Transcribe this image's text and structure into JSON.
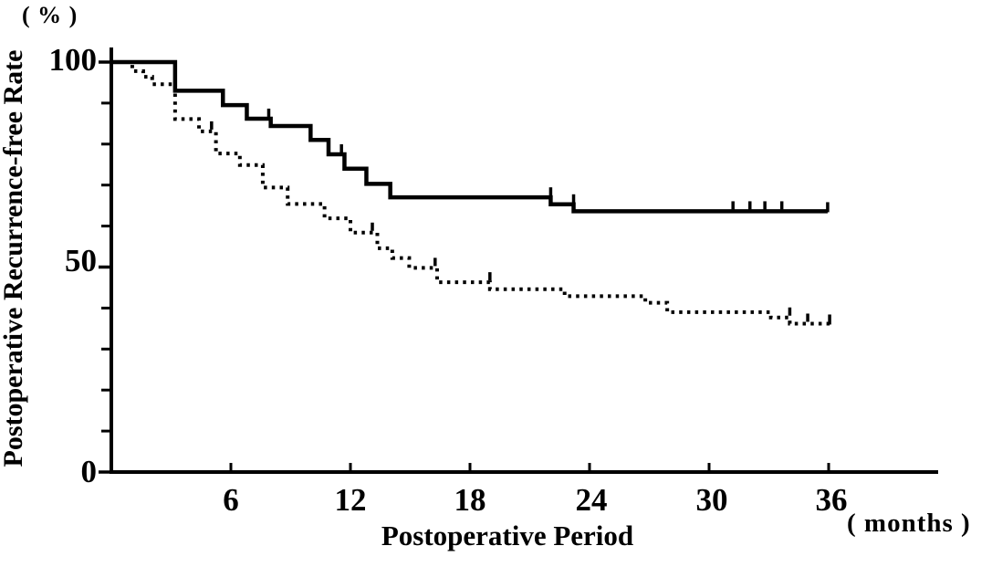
{
  "chart_data": {
    "type": "line",
    "subtype": "kaplan-meier-step",
    "title": "",
    "xlabel": "Postoperative Period",
    "ylabel": "Postoperative Recurrence-free Rate",
    "x_unit": "( months )",
    "y_unit": "( % )",
    "xlim": [
      0,
      41.5
    ],
    "ylim": [
      0,
      100
    ],
    "x_ticks": [
      6,
      12,
      18,
      24,
      30,
      36
    ],
    "y_ticks_labeled": [
      0,
      50,
      100
    ],
    "y_ticks_minor": [
      10,
      20,
      30,
      40,
      60,
      70,
      80,
      90
    ],
    "grid": false,
    "legend": "none",
    "colors": {
      "foreground": "#000000",
      "background": "#ffffff"
    },
    "series": [
      {
        "name": "upper-curve-solid",
        "line_style": "solid",
        "start": {
          "t": 0,
          "pct": 100
        },
        "steps": [
          {
            "t": 3.2,
            "pct": 93
          },
          {
            "t": 5.6,
            "pct": 89.5
          },
          {
            "t": 6.8,
            "pct": 86.2
          },
          {
            "t": 8.0,
            "pct": 84.4
          },
          {
            "t": 10.0,
            "pct": 81
          },
          {
            "t": 10.9,
            "pct": 77.5
          },
          {
            "t": 11.7,
            "pct": 74
          },
          {
            "t": 12.8,
            "pct": 70.3
          },
          {
            "t": 14.0,
            "pct": 67
          },
          {
            "t": 22.05,
            "pct": 65.3
          },
          {
            "t": 23.2,
            "pct": 63.6
          }
        ],
        "end_t": 35.95,
        "final_pct": 63.6,
        "censor_marks": [
          {
            "t": 7.9,
            "pct": 86.2
          },
          {
            "t": 11.55,
            "pct": 77.5
          },
          {
            "t": 22.05,
            "pct": 67
          },
          {
            "t": 23.2,
            "pct": 65.3
          },
          {
            "t": 31.2,
            "pct": 63.6
          },
          {
            "t": 32.05,
            "pct": 63.6
          },
          {
            "t": 32.8,
            "pct": 63.6
          },
          {
            "t": 33.65,
            "pct": 63.6
          }
        ],
        "end_tick": true
      },
      {
        "name": "lower-curve-dotted",
        "line_style": "dotted",
        "start": {
          "t": 0,
          "pct": 100
        },
        "steps": [
          {
            "t": 1.05,
            "pct": 97.8
          },
          {
            "t": 1.6,
            "pct": 96.4
          },
          {
            "t": 2.05,
            "pct": 94.6
          },
          {
            "t": 3.2,
            "pct": 86.1
          },
          {
            "t": 4.4,
            "pct": 83.1
          },
          {
            "t": 5.25,
            "pct": 77.7
          },
          {
            "t": 6.45,
            "pct": 74.9
          },
          {
            "t": 7.6,
            "pct": 69.4
          },
          {
            "t": 8.85,
            "pct": 65.4
          },
          {
            "t": 10.7,
            "pct": 61.9
          },
          {
            "t": 12.0,
            "pct": 58.4
          },
          {
            "t": 13.35,
            "pct": 54.6
          },
          {
            "t": 14.1,
            "pct": 52.2
          },
          {
            "t": 14.95,
            "pct": 49.8
          },
          {
            "t": 16.35,
            "pct": 46.3
          },
          {
            "t": 19.0,
            "pct": 44.6
          },
          {
            "t": 22.75,
            "pct": 42.9
          },
          {
            "t": 26.8,
            "pct": 41.3
          },
          {
            "t": 27.9,
            "pct": 39.0
          },
          {
            "t": 33.1,
            "pct": 37.7
          },
          {
            "t": 34.05,
            "pct": 36.2
          }
        ],
        "end_t": 36.05,
        "final_pct": 36.2,
        "censor_marks": [
          {
            "t": 5.03,
            "pct": 83.1
          },
          {
            "t": 13.1,
            "pct": 58.4
          },
          {
            "t": 16.25,
            "pct": 49.8
          },
          {
            "t": 19.0,
            "pct": 46.3
          },
          {
            "t": 34.05,
            "pct": 37.7
          },
          {
            "t": 34.95,
            "pct": 36.2
          }
        ],
        "end_tick": true
      }
    ]
  }
}
